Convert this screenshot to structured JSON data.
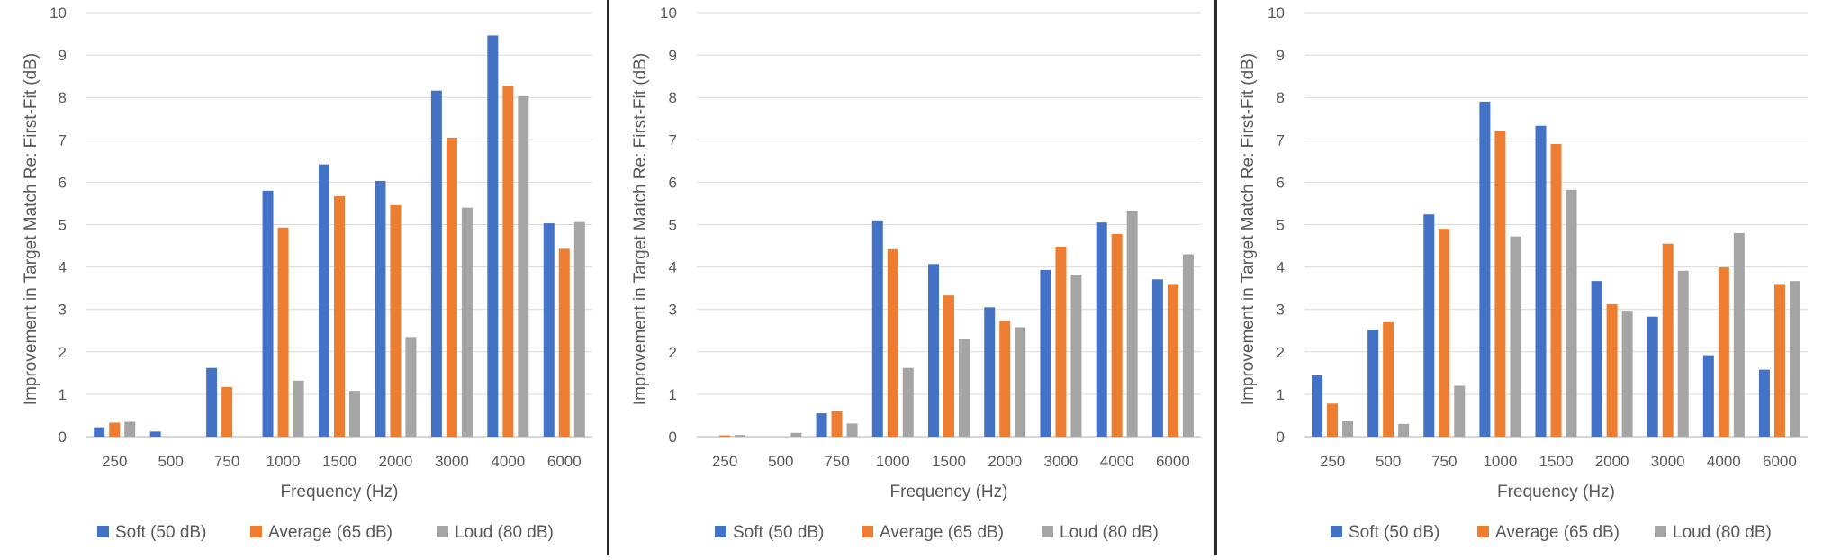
{
  "colors": {
    "soft": "#4472C4",
    "average": "#ED7D31",
    "loud": "#A5A5A5",
    "grid": "#D9D9D9",
    "axis": "#BFBFBF",
    "text": "#595959",
    "divider": "#2b2b2b"
  },
  "chart_data": [
    {
      "type": "bar",
      "categories": [
        "250",
        "500",
        "750",
        "1000",
        "1500",
        "2000",
        "3000",
        "4000",
        "6000"
      ],
      "series": [
        {
          "name": "Soft (50 dB)",
          "values": [
            0.22,
            0.12,
            1.62,
            5.8,
            6.42,
            6.03,
            8.16,
            9.46,
            5.03
          ]
        },
        {
          "name": "Average (65 dB)",
          "values": [
            0.33,
            0.0,
            1.17,
            4.93,
            5.67,
            5.46,
            7.05,
            8.28,
            4.43
          ]
        },
        {
          "name": "Loud (80 dB)",
          "values": [
            0.35,
            0.0,
            0.0,
            1.32,
            1.08,
            2.35,
            5.4,
            8.03,
            5.06
          ]
        }
      ],
      "xlabel": "Frequency (Hz)",
      "ylabel": "Improvement in Target Match Re: First-Fit (dB)",
      "ylim": [
        0,
        10
      ],
      "yticks": [
        "0",
        "1",
        "2",
        "3",
        "4",
        "5",
        "6",
        "7",
        "8",
        "9",
        "10"
      ],
      "grid": true,
      "legend": "bottom"
    },
    {
      "type": "bar",
      "categories": [
        "250",
        "500",
        "750",
        "1000",
        "1500",
        "2000",
        "3000",
        "4000",
        "6000"
      ],
      "series": [
        {
          "name": "Soft (50 dB)",
          "values": [
            0.0,
            0.0,
            0.55,
            5.1,
            4.07,
            3.05,
            3.93,
            5.05,
            3.71
          ]
        },
        {
          "name": "Average (65 dB)",
          "values": [
            0.03,
            0.0,
            0.6,
            4.42,
            3.33,
            2.73,
            4.48,
            4.78,
            3.6
          ]
        },
        {
          "name": "Loud (80 dB)",
          "values": [
            0.04,
            0.09,
            0.31,
            1.62,
            2.31,
            2.58,
            3.82,
            5.33,
            4.3
          ]
        }
      ],
      "xlabel": "Frequency (Hz)",
      "ylabel": "Improvement in Target Match Re: First-Fit (dB)",
      "ylim": [
        0,
        10
      ],
      "yticks": [
        "0",
        "1",
        "2",
        "3",
        "4",
        "5",
        "6",
        "7",
        "8",
        "9",
        "10"
      ],
      "grid": true,
      "legend": "bottom"
    },
    {
      "type": "bar",
      "categories": [
        "250",
        "500",
        "750",
        "1000",
        "1500",
        "2000",
        "3000",
        "4000",
        "6000"
      ],
      "series": [
        {
          "name": "Soft (50 dB)",
          "values": [
            1.45,
            2.52,
            5.24,
            7.9,
            7.33,
            3.67,
            2.83,
            1.92,
            1.58
          ]
        },
        {
          "name": "Average (65 dB)",
          "values": [
            0.78,
            2.7,
            4.9,
            7.2,
            6.9,
            3.12,
            4.55,
            3.99,
            3.6
          ]
        },
        {
          "name": "Loud (80 dB)",
          "values": [
            0.36,
            0.3,
            1.2,
            4.72,
            5.82,
            2.97,
            3.91,
            4.8,
            3.67
          ]
        }
      ],
      "xlabel": "Frequency (Hz)",
      "ylabel": "Improvement in Target Match Re: First-Fit (dB)",
      "ylim": [
        0,
        10
      ],
      "yticks": [
        "0",
        "1",
        "2",
        "3",
        "4",
        "5",
        "6",
        "7",
        "8",
        "9",
        "10"
      ],
      "grid": true,
      "legend": "bottom"
    }
  ]
}
